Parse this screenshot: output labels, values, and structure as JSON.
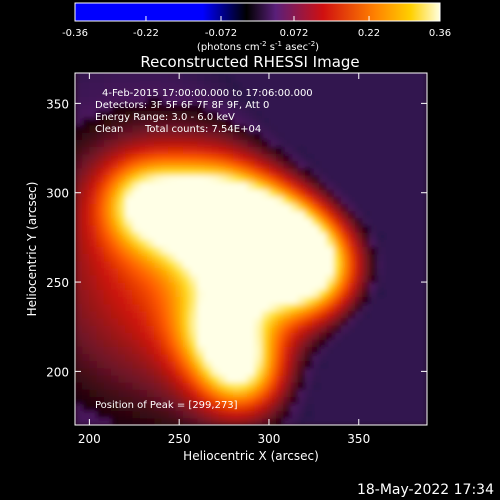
{
  "colorbar": {
    "ticks": [
      "-0.36",
      "-0.22",
      "-0.072",
      "0.072",
      "0.22",
      "0.36"
    ],
    "tick_values": [
      -0.36,
      -0.22,
      -0.072,
      0.072,
      0.22,
      0.36
    ],
    "range": [
      -0.36,
      0.36
    ],
    "unit_main": "(photons cm",
    "unit_exp1": "-2",
    "unit_mid": " s",
    "unit_exp2": "-1",
    "unit_end": " asec",
    "unit_exp3": "-2",
    "unit_close": ")"
  },
  "chart_data": {
    "type": "heatmap",
    "title": "Reconstructed RHESSI Image",
    "xlabel": "Heliocentric X (arcsec)",
    "ylabel": "Heliocentric Y (arcsec)",
    "xlim": [
      192,
      388
    ],
    "ylim": [
      170,
      367
    ],
    "x_ticks": [
      200,
      250,
      300,
      350
    ],
    "y_ticks": [
      200,
      250,
      300,
      350
    ],
    "x_tick_labels": [
      "200",
      "250",
      "300",
      "350"
    ],
    "y_tick_labels": [
      "200",
      "250",
      "300",
      "350"
    ],
    "colormap": "RHESSI thermal (black-red-orange-yellow-white)",
    "annotations": {
      "time_range": "4-Feb-2015 17:00:00.000 to 17:06:00.000",
      "detectors": "Detectors: 3F 5F 6F 7F 8F 9F, Att 0",
      "energy_range": "Energy Range: 3.0 - 6.0 keV",
      "method": "Clean",
      "total_counts": "Total counts: 7.54E+04",
      "peak": "Position of Peak = [299,273]"
    },
    "peak_position": [
      299,
      273
    ],
    "sources": [
      {
        "x": 268,
        "y": 288,
        "value": 0.3
      },
      {
        "x": 299,
        "y": 273,
        "value": 0.36
      },
      {
        "x": 325,
        "y": 258,
        "value": 0.32
      },
      {
        "x": 230,
        "y": 295,
        "value": 0.22
      },
      {
        "x": 285,
        "y": 200,
        "value": 0.26
      },
      {
        "x": 272,
        "y": 225,
        "value": 0.2
      }
    ]
  },
  "footer": {
    "timestamp": "18-May-2022 17:34"
  }
}
